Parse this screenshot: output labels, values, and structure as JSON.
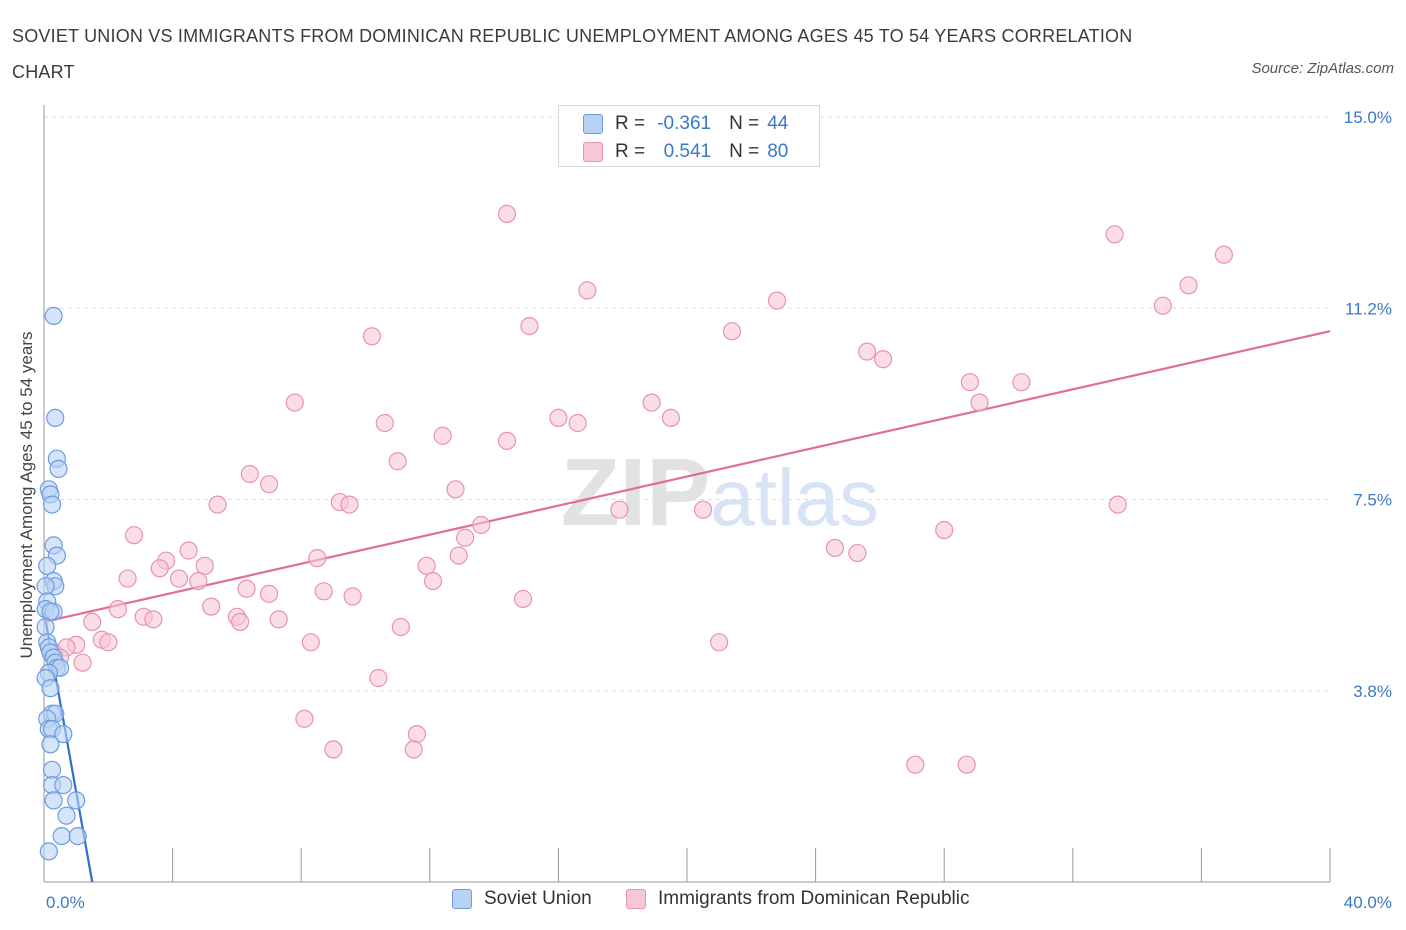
{
  "title": "SOVIET UNION VS IMMIGRANTS FROM DOMINICAN REPUBLIC UNEMPLOYMENT AMONG AGES 45 TO 54 YEARS CORRELATION CHART",
  "source": "Source: ZipAtlas.com",
  "watermark": "ZIPatlas",
  "legend": {
    "rows": [
      {
        "r_label": "R =",
        "r_value": "-0.361",
        "n_label": "N =",
        "n_value": "44",
        "fill": "#b9d2f4",
        "stroke": "#6c9de0"
      },
      {
        "r_label": "R =",
        "r_value": "0.541",
        "n_label": "N =",
        "n_value": "80",
        "fill": "#f8c6d6",
        "stroke": "#e893b0"
      }
    ]
  },
  "bottom_legend": [
    {
      "label": "Soviet Union",
      "fill": "#b9d2f4",
      "stroke": "#6c9de0"
    },
    {
      "label": "Immigrants from Dominican Republic",
      "fill": "#f8c6d6",
      "stroke": "#e893b0"
    }
  ],
  "chart_data": {
    "type": "scatter",
    "title": "SOVIET UNION VS IMMIGRANTS FROM DOMINICAN REPUBLIC UNEMPLOYMENT AMONG AGES 45 TO 54 YEARS CORRELATION CHART",
    "xlabel": "",
    "ylabel": "Unemployment Among Ages 45 to 54 years",
    "xlim": [
      0,
      40
    ],
    "ylim": [
      0,
      15
    ],
    "x_tick_labels": [
      {
        "value": 0,
        "label": "0.0%"
      },
      {
        "value": 40,
        "label": "40.0%"
      }
    ],
    "y_tick_labels": [
      {
        "value": 3.75,
        "label": "3.8%"
      },
      {
        "value": 7.5,
        "label": "7.5%"
      },
      {
        "value": 11.25,
        "label": "11.2%"
      },
      {
        "value": 15.0,
        "label": "15.0%"
      }
    ],
    "grid": true,
    "legend_position": "top-center",
    "series": [
      {
        "name": "Soviet Union",
        "color": "#6c9de0",
        "fill": "#b9d2f4",
        "trend": {
          "x": [
            0,
            1.5
          ],
          "y": [
            5.3,
            0
          ],
          "color": "#2f6fd1"
        },
        "points": [
          [
            0.3,
            11.1
          ],
          [
            0.35,
            9.1
          ],
          [
            0.4,
            8.3
          ],
          [
            0.45,
            8.1
          ],
          [
            0.15,
            7.7
          ],
          [
            0.2,
            7.6
          ],
          [
            0.25,
            7.4
          ],
          [
            0.3,
            6.6
          ],
          [
            0.4,
            6.4
          ],
          [
            0.1,
            6.2
          ],
          [
            0.3,
            5.9
          ],
          [
            0.35,
            5.8
          ],
          [
            0.05,
            5.8
          ],
          [
            0.1,
            5.5
          ],
          [
            0.05,
            5.35
          ],
          [
            0.3,
            5.3
          ],
          [
            0.2,
            5.3
          ],
          [
            0.05,
            5.0
          ],
          [
            0.1,
            4.7
          ],
          [
            0.15,
            4.6
          ],
          [
            0.2,
            4.5
          ],
          [
            0.3,
            4.4
          ],
          [
            0.35,
            4.3
          ],
          [
            0.4,
            4.2
          ],
          [
            0.5,
            4.2
          ],
          [
            0.15,
            4.1
          ],
          [
            0.05,
            4.0
          ],
          [
            0.2,
            3.8
          ],
          [
            0.25,
            3.3
          ],
          [
            0.35,
            3.3
          ],
          [
            0.1,
            3.2
          ],
          [
            0.15,
            3.0
          ],
          [
            0.25,
            3.0
          ],
          [
            0.6,
            2.9
          ],
          [
            0.2,
            2.7
          ],
          [
            0.25,
            2.2
          ],
          [
            0.25,
            1.9
          ],
          [
            0.6,
            1.9
          ],
          [
            0.3,
            1.6
          ],
          [
            1.0,
            1.6
          ],
          [
            0.7,
            1.3
          ],
          [
            0.55,
            0.9
          ],
          [
            1.05,
            0.9
          ],
          [
            0.15,
            0.6
          ]
        ]
      },
      {
        "name": "Immigrants from Dominican Republic",
        "color": "#e893b0",
        "fill": "#f8c6d6",
        "trend": {
          "x": [
            0,
            40
          ],
          "y": [
            5.1,
            10.8
          ],
          "color": "#e06d95"
        },
        "points": [
          [
            14.4,
            13.1
          ],
          [
            33.3,
            12.7
          ],
          [
            36.7,
            12.3
          ],
          [
            16.9,
            11.6
          ],
          [
            35.6,
            11.7
          ],
          [
            22.8,
            11.4
          ],
          [
            34.8,
            11.3
          ],
          [
            15.1,
            10.9
          ],
          [
            21.4,
            10.8
          ],
          [
            10.2,
            10.7
          ],
          [
            25.6,
            10.4
          ],
          [
            26.1,
            10.25
          ],
          [
            28.8,
            9.8
          ],
          [
            30.4,
            9.8
          ],
          [
            7.8,
            9.4
          ],
          [
            18.9,
            9.4
          ],
          [
            29.1,
            9.4
          ],
          [
            16.0,
            9.1
          ],
          [
            16.6,
            9.0
          ],
          [
            19.5,
            9.1
          ],
          [
            10.6,
            9.0
          ],
          [
            12.4,
            8.75
          ],
          [
            14.4,
            8.65
          ],
          [
            11.0,
            8.25
          ],
          [
            6.4,
            8.0
          ],
          [
            7.0,
            7.8
          ],
          [
            12.8,
            7.7
          ],
          [
            5.4,
            7.4
          ],
          [
            9.2,
            7.45
          ],
          [
            9.5,
            7.4
          ],
          [
            17.9,
            7.3
          ],
          [
            20.5,
            7.3
          ],
          [
            33.4,
            7.4
          ],
          [
            13.6,
            7.0
          ],
          [
            2.8,
            6.8
          ],
          [
            28.0,
            6.9
          ],
          [
            13.1,
            6.75
          ],
          [
            24.6,
            6.55
          ],
          [
            4.5,
            6.5
          ],
          [
            25.3,
            6.45
          ],
          [
            12.9,
            6.4
          ],
          [
            3.8,
            6.3
          ],
          [
            8.5,
            6.35
          ],
          [
            11.9,
            6.2
          ],
          [
            5.0,
            6.2
          ],
          [
            3.6,
            6.15
          ],
          [
            4.2,
            5.95
          ],
          [
            2.6,
            5.95
          ],
          [
            4.8,
            5.9
          ],
          [
            12.1,
            5.9
          ],
          [
            6.3,
            5.75
          ],
          [
            7.0,
            5.65
          ],
          [
            8.7,
            5.7
          ],
          [
            9.6,
            5.6
          ],
          [
            14.9,
            5.55
          ],
          [
            5.2,
            5.4
          ],
          [
            2.3,
            5.35
          ],
          [
            3.1,
            5.2
          ],
          [
            6.0,
            5.2
          ],
          [
            3.4,
            5.15
          ],
          [
            7.3,
            5.15
          ],
          [
            6.1,
            5.1
          ],
          [
            11.1,
            5.0
          ],
          [
            1.5,
            5.1
          ],
          [
            1.8,
            4.75
          ],
          [
            2.0,
            4.7
          ],
          [
            8.3,
            4.7
          ],
          [
            21.0,
            4.7
          ],
          [
            1.0,
            4.65
          ],
          [
            0.7,
            4.6
          ],
          [
            0.3,
            4.5
          ],
          [
            0.5,
            4.4
          ],
          [
            1.2,
            4.3
          ],
          [
            10.4,
            4.0
          ],
          [
            8.1,
            3.2
          ],
          [
            11.6,
            2.9
          ],
          [
            9.0,
            2.6
          ],
          [
            11.5,
            2.6
          ],
          [
            27.1,
            2.3
          ],
          [
            28.7,
            2.3
          ]
        ]
      }
    ]
  }
}
